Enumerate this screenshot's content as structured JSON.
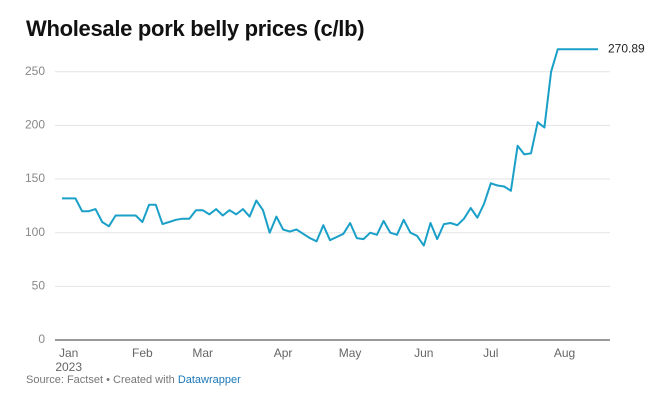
{
  "chart_data": {
    "type": "line",
    "title": "Wholesale pork belly prices (c/lb)",
    "source": {
      "text": "Source: Factset • Created with",
      "link": "Datawrapper"
    },
    "categories": [
      null,
      "Jan\n2023",
      null,
      null,
      null,
      null,
      null,
      null,
      null,
      null,
      null,
      null,
      "Feb",
      null,
      null,
      null,
      null,
      null,
      null,
      null,
      null,
      "Mar",
      null,
      null,
      null,
      null,
      null,
      null,
      null,
      null,
      null,
      null,
      null,
      "Apr",
      null,
      null,
      null,
      null,
      null,
      null,
      null,
      null,
      null,
      "May",
      null,
      null,
      null,
      null,
      null,
      null,
      null,
      null,
      null,
      null,
      "Jun",
      null,
      null,
      null,
      null,
      null,
      null,
      null,
      null,
      null,
      "Jul",
      null,
      null,
      null,
      null,
      null,
      null,
      null,
      null,
      null,
      null,
      "Aug",
      null,
      null,
      null,
      null,
      null
    ],
    "series": [
      {
        "name": null,
        "color": "#1aa0c8",
        "values": [
          132,
          132,
          132,
          120,
          120,
          122,
          110,
          106,
          116,
          116,
          116,
          116,
          110,
          126,
          126,
          108,
          110,
          112,
          113,
          113,
          121,
          121,
          117,
          122,
          116,
          121,
          117,
          122,
          115,
          130,
          121,
          100,
          115,
          103,
          101,
          103,
          99,
          95,
          92,
          107,
          93,
          96,
          99,
          109,
          95,
          94,
          100,
          98,
          111,
          100,
          98,
          112,
          100,
          97,
          88,
          109,
          94,
          108,
          109,
          107,
          113,
          123,
          114,
          127,
          146,
          144,
          143,
          139,
          181,
          173,
          174,
          203,
          198,
          250,
          271,
          271,
          271,
          271,
          271,
          271,
          270.89
        ]
      }
    ],
    "ylim": [
      0,
      260
    ],
    "yticks": [
      0,
      50,
      100,
      150,
      200,
      250
    ],
    "grid": true
  }
}
